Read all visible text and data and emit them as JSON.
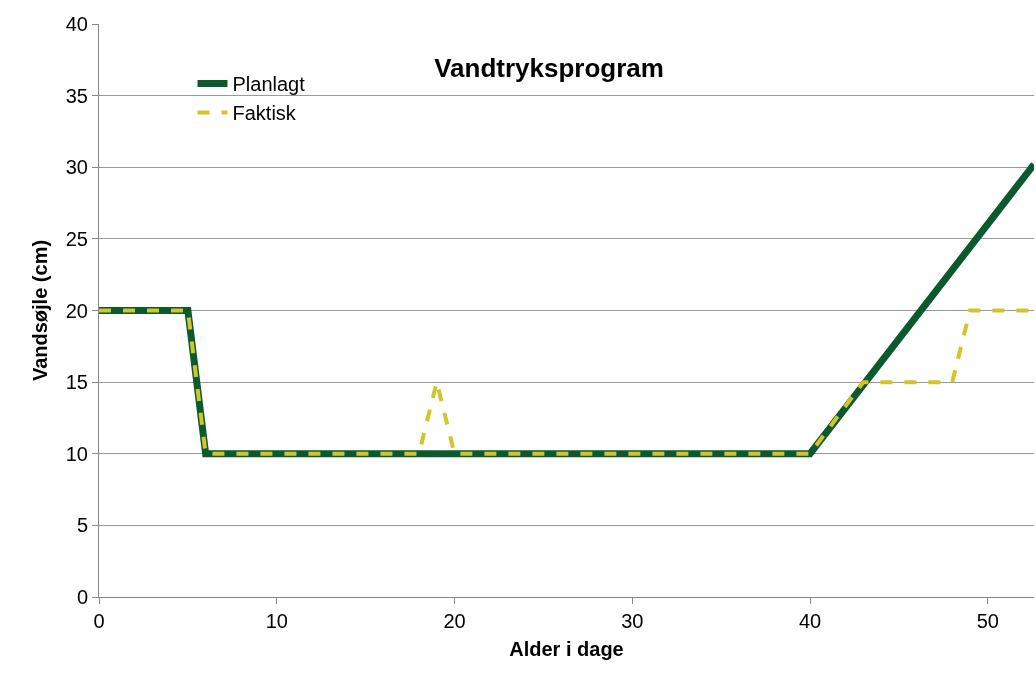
{
  "chart_data": {
    "type": "line",
    "title": "Vandtryksprogram",
    "xlabel": "Alder i dage",
    "ylabel": "Vandsøjle (cm)",
    "series": [
      {
        "name": "Planlagt",
        "color": "#0b5a2e",
        "line_style": "solid",
        "x": [
          0,
          5,
          6,
          40,
          52.6
        ],
        "values": [
          20,
          20,
          10,
          10,
          30.2
        ]
      },
      {
        "name": "Faktisk",
        "color": "#d4c42c",
        "line_style": "dashed",
        "x": [
          0,
          5,
          6,
          18,
          19,
          20,
          40,
          43,
          48,
          49,
          52.6
        ],
        "values": [
          20,
          20,
          10,
          10,
          15,
          10,
          10,
          15,
          15,
          20,
          20
        ]
      }
    ],
    "xlim": [
      0,
      52.6
    ],
    "xticks": [
      0,
      10,
      20,
      30,
      40,
      50
    ],
    "ylim": [
      0,
      40
    ],
    "yticks": [
      0,
      5,
      10,
      15,
      20,
      25,
      30,
      35,
      40
    ],
    "grid": "y",
    "legend": "top left",
    "marker": "none"
  }
}
